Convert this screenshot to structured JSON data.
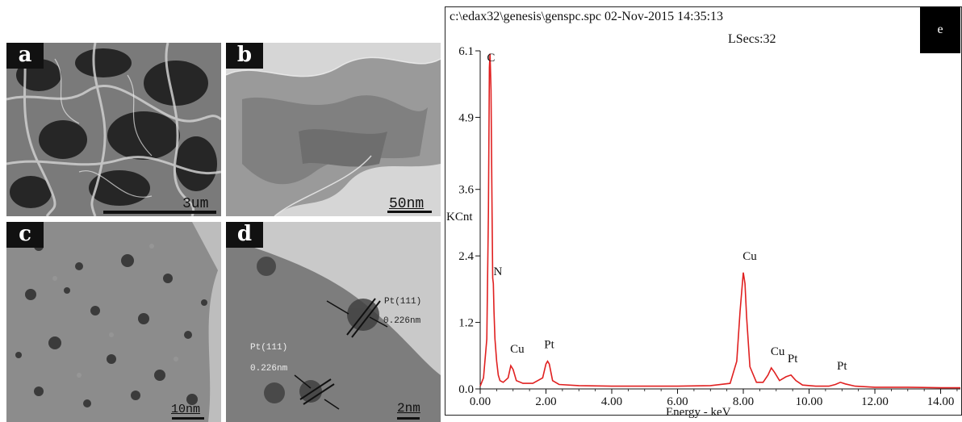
{
  "panels": [
    {
      "label": "a",
      "scale": "3um"
    },
    {
      "label": "b",
      "scale": "50nm"
    },
    {
      "label": "c",
      "scale": "10nm"
    },
    {
      "label": "d",
      "scale": "2nm",
      "annotations": [
        "Pt(111)",
        "0.226nm",
        "Pt(111)",
        "0.226nm"
      ]
    }
  ],
  "eds": {
    "header_line": "c:\\edax32\\genesis\\genspc.spc 02-Nov-2015 14:35:13",
    "live_secs": "LSecs:32",
    "panel_label": "e",
    "ylabel": "KCnt",
    "xlabel": "Energy - keV",
    "peak_labels": [
      "C",
      "N",
      "Cu",
      "Pt",
      "Cu",
      "Cu",
      "Pt",
      "Pt"
    ]
  },
  "chart_data": {
    "type": "line",
    "title": "",
    "xlabel": "Energy - keV",
    "ylabel": "KCnt",
    "xlim": [
      0,
      14.6
    ],
    "ylim": [
      0,
      6.1
    ],
    "x_ticks": [
      "0.00",
      "2.00",
      "4.00",
      "6.00",
      "8.00",
      "10.00",
      "12.00",
      "14.00"
    ],
    "y_ticks": [
      "0.0",
      "1.2",
      "2.4",
      "3.6",
      "4.9",
      "6.1"
    ],
    "series": [
      {
        "color": "#e02020",
        "x": [
          0.0,
          0.1,
          0.2,
          0.25,
          0.28,
          0.3,
          0.33,
          0.36,
          0.38,
          0.4,
          0.42,
          0.45,
          0.5,
          0.55,
          0.6,
          0.7,
          0.85,
          0.93,
          1.0,
          1.1,
          1.3,
          1.6,
          1.9,
          2.0,
          2.05,
          2.1,
          2.2,
          2.4,
          3.0,
          4.0,
          5.0,
          6.0,
          7.0,
          7.6,
          7.8,
          7.9,
          8.0,
          8.05,
          8.1,
          8.2,
          8.4,
          8.6,
          8.75,
          8.85,
          8.95,
          9.1,
          9.3,
          9.45,
          9.6,
          9.8,
          10.2,
          10.6,
          10.8,
          10.95,
          11.1,
          11.4,
          12.0,
          13.0,
          14.0,
          14.6
        ],
        "y": [
          0.05,
          0.2,
          0.9,
          3.2,
          5.8,
          6.05,
          5.4,
          3.2,
          2.0,
          1.9,
          1.4,
          0.9,
          0.5,
          0.25,
          0.15,
          0.12,
          0.2,
          0.42,
          0.35,
          0.15,
          0.1,
          0.1,
          0.2,
          0.45,
          0.5,
          0.45,
          0.15,
          0.08,
          0.06,
          0.05,
          0.05,
          0.05,
          0.06,
          0.1,
          0.5,
          1.4,
          2.1,
          1.9,
          1.3,
          0.4,
          0.12,
          0.12,
          0.25,
          0.38,
          0.3,
          0.15,
          0.22,
          0.25,
          0.15,
          0.07,
          0.05,
          0.05,
          0.08,
          0.12,
          0.09,
          0.05,
          0.03,
          0.03,
          0.02,
          0.02
        ]
      }
    ],
    "peaks": [
      {
        "label": "C",
        "x": 0.28,
        "y": 5.5
      },
      {
        "label": "N",
        "x": 0.39,
        "y": 1.85
      },
      {
        "label": "Cu",
        "x": 0.93,
        "y": 0.42
      },
      {
        "label": "Pt",
        "x": 2.05,
        "y": 0.5
      },
      {
        "label": "Cu",
        "x": 8.0,
        "y": 2.1
      },
      {
        "label": "Cu",
        "x": 8.85,
        "y": 0.38
      },
      {
        "label": "Pt",
        "x": 9.45,
        "y": 0.25
      },
      {
        "label": "Pt",
        "x": 10.95,
        "y": 0.12
      }
    ]
  }
}
